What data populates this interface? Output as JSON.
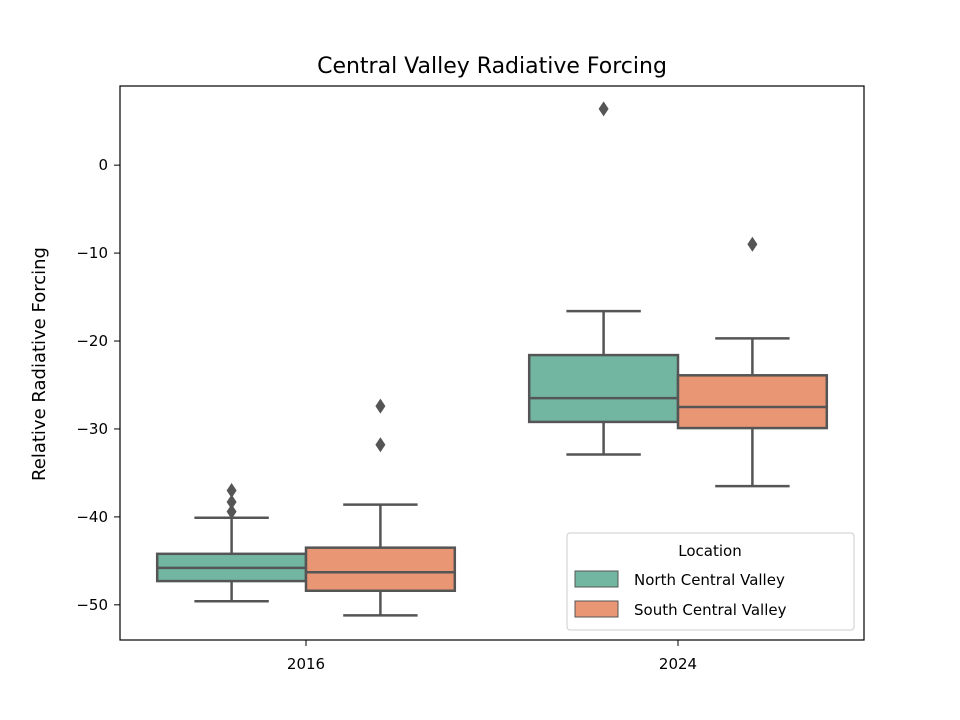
{
  "chart_data": {
    "type": "box",
    "title": "Central Valley Radiative Forcing",
    "xlabel": "",
    "ylabel": "Relative Radiative Forcing",
    "categories": [
      "2016",
      "2024"
    ],
    "ylim": [
      -54,
      9
    ],
    "yticks": [
      0,
      -10,
      -20,
      -30,
      -40,
      -50
    ],
    "ytick_labels": [
      "0",
      "−10",
      "−20",
      "−30",
      "−40",
      "−50"
    ],
    "legend": {
      "title": "Location",
      "placement": "lower-right"
    },
    "series": [
      {
        "name": "North Central Valley",
        "color": "#72b6a1",
        "boxes": [
          {
            "whisker_low": -49.6,
            "q1": -47.3,
            "median": -45.8,
            "q3": -44.2,
            "whisker_high": -40.1,
            "outliers": [
              -37.0,
              -38.3,
              -39.4
            ]
          },
          {
            "whisker_low": -32.9,
            "q1": -29.2,
            "median": -26.5,
            "q3": -21.6,
            "whisker_high": -16.6,
            "outliers": [
              6.4
            ]
          }
        ]
      },
      {
        "name": "South Central Valley",
        "color": "#e99675",
        "boxes": [
          {
            "whisker_low": -51.2,
            "q1": -48.4,
            "median": -46.3,
            "q3": -43.5,
            "whisker_high": -38.6,
            "outliers": [
              -27.4,
              -31.8
            ]
          },
          {
            "whisker_low": -36.5,
            "q1": -29.9,
            "median": -27.5,
            "q3": -23.9,
            "whisker_high": -19.7,
            "outliers": [
              -9.0
            ]
          }
        ]
      }
    ]
  }
}
